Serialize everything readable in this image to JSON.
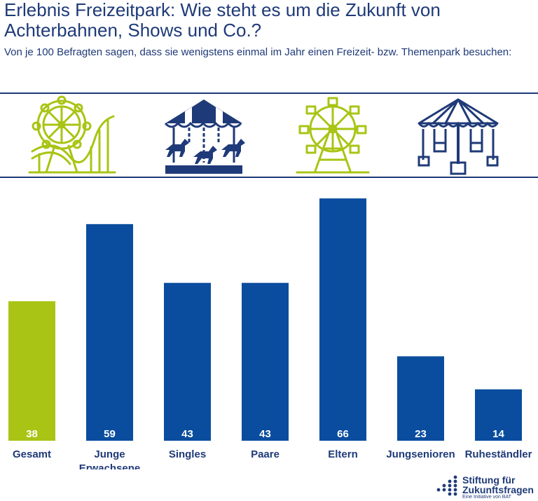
{
  "header": {
    "title": "Erlebnis Freizeitpark: Wie steht es um die Zukunft von Achterbahnen, Shows und Co.?",
    "subtitle": "Von je 100 Befragten sagen, dass sie wenigstens einmal im Jahr einen Freizeit- bzw. Themenpark besuchen:"
  },
  "icons": [
    "ferris-wheel-rollercoaster-icon",
    "carousel-icon",
    "ferris-wheel-icon",
    "chain-swing-ride-icon"
  ],
  "colors": {
    "navy": "#1f3a78",
    "bar_blue": "#0a4d9e",
    "bar_green": "#a9c414"
  },
  "chart_data": {
    "type": "bar",
    "categories": [
      "Gesamt",
      "Junge Erwachsene",
      "Singles",
      "Paare",
      "Eltern",
      "Jungsenioren",
      "Ruheständler"
    ],
    "category_lines": [
      [
        "Gesamt"
      ],
      [
        "Junge",
        "Erwachsene"
      ],
      [
        "Singles"
      ],
      [
        "Paare"
      ],
      [
        "Eltern"
      ],
      [
        "Jungsenioren"
      ],
      [
        "Ruheständler"
      ]
    ],
    "values": [
      38,
      59,
      43,
      43,
      66,
      23,
      14
    ],
    "value_labels": [
      "38",
      "59",
      "43",
      "43",
      "66",
      "23",
      "14"
    ],
    "highlight_index": 0,
    "ylim": [
      0,
      70
    ],
    "grid": false
  },
  "logo": {
    "name_line1": "Stiftung für",
    "name_line2": "Zukunftsfragen",
    "tagline": "Eine Initiative von BAT"
  }
}
